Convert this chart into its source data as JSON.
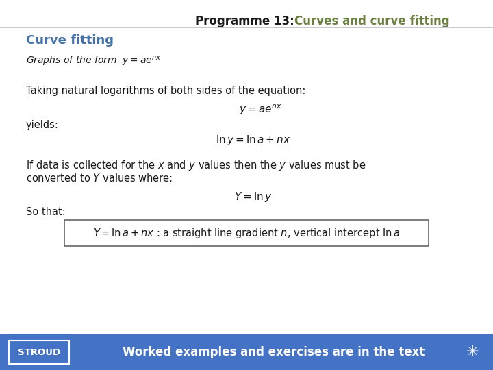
{
  "title_black": "Programme 13:  ",
  "title_green": "Curves and curve fitting",
  "title_fontsize": 12,
  "olive_color": "#6B8040",
  "section_title": "Curve fitting",
  "section_title_color": "#4472A8",
  "section_title_fontsize": 13,
  "footer_color": "#4472C4",
  "footer_text": "Worked examples and exercises are in the text",
  "bg_color": "#FFFFFF",
  "text_color": "#1a1a1a",
  "body_fontsize": 10.5
}
